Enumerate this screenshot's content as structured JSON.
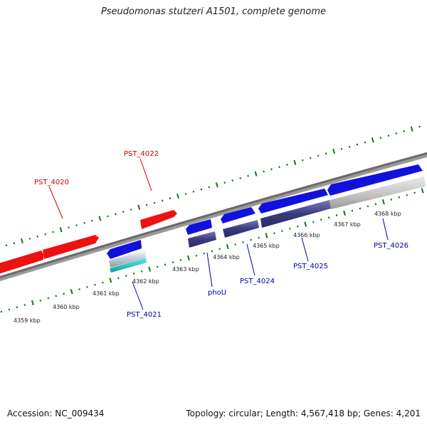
{
  "title": "Pseudomonas stutzeri A1501, complete genome",
  "footer": {
    "accession": "Accession: NC_009434",
    "summary": "Topology: circular; Length: 4,567,418 bp; Genes: 4,201"
  },
  "colors": {
    "forward_gene": "#ee1111",
    "reverse_gene": "#1111dd",
    "backbone": "#777777",
    "ticks": "#117711",
    "reverse_label": "#0000aa",
    "forward_label": "#cc0000"
  },
  "scale_labels": [
    "4359 kbp",
    "4360 kbp",
    "4361 kbp",
    "4362 kbp",
    "4363 kbp",
    "4364 kbp",
    "4365 kbp",
    "4366 kbp",
    "4367 kbp",
    "4368 kbp"
  ],
  "gene_labels": {
    "forward": [
      "PST_4020",
      "PST_4022"
    ],
    "reverse": [
      "PST_4021",
      "phoU",
      "PST_4024",
      "PST_4025",
      "PST_4026"
    ]
  }
}
